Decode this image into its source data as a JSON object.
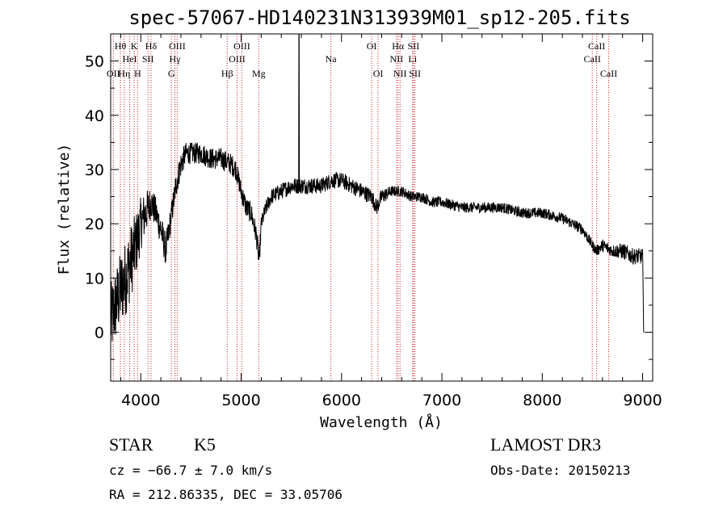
{
  "chart_data": {
    "type": "line",
    "title": "spec-57067-HD140231N313939M01_sp12-205.fits",
    "xlabel": "Wavelength (Å)",
    "ylabel": "Flux (relative)",
    "xlim": [
      3700,
      9100
    ],
    "ylim": [
      -9,
      55
    ],
    "xticks": [
      4000,
      5000,
      6000,
      7000,
      8000,
      9000
    ],
    "yticks": [
      0,
      10,
      20,
      30,
      40,
      50
    ],
    "spectrum": {
      "x": [
        3700,
        3750,
        3800,
        3850,
        3900,
        3950,
        4000,
        4050,
        4100,
        4150,
        4200,
        4250,
        4300,
        4350,
        4400,
        4450,
        4500,
        4600,
        4700,
        4800,
        4900,
        4950,
        5000,
        5050,
        5100,
        5150,
        5180,
        5200,
        5250,
        5300,
        5400,
        5500,
        5550,
        5580,
        5600,
        5700,
        5800,
        5900,
        6000,
        6100,
        6200,
        6300,
        6350,
        6400,
        6500,
        6560,
        6600,
        6700,
        6800,
        6900,
        7000,
        7200,
        7400,
        7600,
        7800,
        8000,
        8200,
        8400,
        8500,
        8540,
        8600,
        8700,
        8800,
        8900,
        9000,
        9010
      ],
      "y": [
        2,
        5,
        8,
        10,
        13,
        16,
        20,
        22,
        24,
        22,
        19,
        15,
        21,
        27,
        31,
        33,
        33,
        33,
        32,
        32,
        31,
        30,
        26,
        23,
        22,
        18,
        13,
        20,
        23,
        25,
        26,
        27,
        27,
        27,
        27,
        27,
        27,
        28,
        28,
        27,
        26,
        25,
        23,
        25,
        26,
        26,
        26,
        25,
        25,
        24,
        24,
        23,
        23,
        23,
        22,
        22,
        21,
        19,
        16,
        15,
        16,
        15,
        15,
        14,
        14,
        0
      ],
      "noise_amplitude": [
        7,
        7,
        7,
        7,
        7,
        6,
        5,
        4,
        3,
        3,
        3,
        3,
        2.5,
        2.5,
        2.5,
        2,
        2,
        2,
        2,
        2,
        2,
        2,
        2,
        2,
        2,
        2,
        2,
        1.5,
        1.5,
        1.5,
        1.5,
        1.5,
        1.5,
        1.5,
        1.5,
        1.5,
        1.5,
        1.5,
        1.5,
        1.5,
        1.5,
        1.5,
        1.5,
        1.5,
        1,
        1,
        1,
        1,
        1,
        1,
        1,
        1,
        1,
        1,
        1,
        1,
        1,
        1,
        1,
        1,
        1.2,
        1.2,
        1.5,
        1.5,
        1.5,
        0
      ],
      "spikes": [
        {
          "x": 5577,
          "y": 55
        }
      ]
    },
    "lines": [
      {
        "label": "OII",
        "wl": 3727,
        "row": 3
      },
      {
        "label": "Hθ",
        "wl": 3797,
        "row": 1
      },
      {
        "label": "Hη",
        "wl": 3835,
        "row": 3
      },
      {
        "label": "K",
        "wl": 3934,
        "row": 1
      },
      {
        "label": "H",
        "wl": 3969,
        "row": 3
      },
      {
        "label": "HeI",
        "wl": 3889,
        "row": 2
      },
      {
        "label": "SII",
        "wl": 4072,
        "row": 2
      },
      {
        "label": "Hδ",
        "wl": 4102,
        "row": 1
      },
      {
        "label": "G",
        "wl": 4305,
        "row": 3
      },
      {
        "label": "Hγ",
        "wl": 4340,
        "row": 2
      },
      {
        "label": "OIII",
        "wl": 4363,
        "row": 1
      },
      {
        "label": "Hβ",
        "wl": 4861,
        "row": 3
      },
      {
        "label": "OIII",
        "wl": 4959,
        "row": 2
      },
      {
        "label": "OIII",
        "wl": 5007,
        "row": 1
      },
      {
        "label": "Mg",
        "wl": 5175,
        "row": 3
      },
      {
        "label": "Na",
        "wl": 5894,
        "row": 2
      },
      {
        "label": "OI",
        "wl": 6300,
        "row": 1
      },
      {
        "label": "OI",
        "wl": 6364,
        "row": 3
      },
      {
        "label": "NII",
        "wl": 6548,
        "row": 2
      },
      {
        "label": "Hα",
        "wl": 6563,
        "row": 1
      },
      {
        "label": "NII",
        "wl": 6583,
        "row": 3
      },
      {
        "label": "Li",
        "wl": 6708,
        "row": 2
      },
      {
        "label": "SII",
        "wl": 6717,
        "row": 1
      },
      {
        "label": "SII",
        "wl": 6731,
        "row": 3
      },
      {
        "label": "CaII",
        "wl": 8498,
        "row": 2
      },
      {
        "label": "CaII",
        "wl": 8542,
        "row": 1
      },
      {
        "label": "CaII",
        "wl": 8662,
        "row": 3
      }
    ]
  },
  "info": {
    "class": "STAR",
    "subclass": "K5",
    "survey": "LAMOST DR3",
    "cz": "cz = −66.7 ± 7.0 km/s",
    "obsdate": "Obs-Date: 20150213",
    "radec": "RA = 212.86335, DEC =  33.05706"
  },
  "colors": {
    "line_marker": "#cc2222",
    "spectrum": "#000000"
  }
}
